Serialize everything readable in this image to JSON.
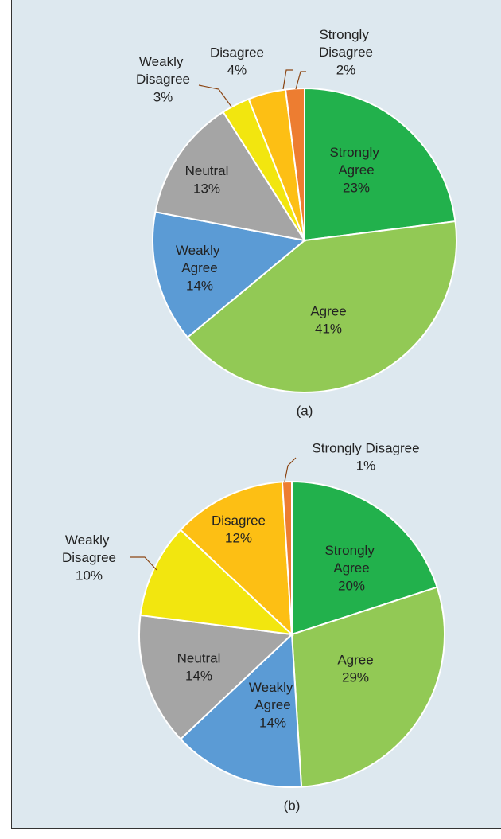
{
  "chart_data": [
    {
      "type": "pie",
      "title": "(a)",
      "categories": [
        "Strongly Agree",
        "Agree",
        "Weakly Agree",
        "Neutral",
        "Weakly Disagree",
        "Disagree",
        "Strongly Disagree"
      ],
      "values": [
        23,
        41,
        14,
        13,
        3,
        4,
        2
      ],
      "value_labels": [
        "23%",
        "41%",
        "14%",
        "13%",
        "3%",
        "4%",
        "2%"
      ],
      "colors": [
        "#22b14c",
        "#92c955",
        "#5b9bd5",
        "#a5a5a5",
        "#f2e60f",
        "#fdbf14",
        "#ed7d31"
      ]
    },
    {
      "type": "pie",
      "title": "(b)",
      "categories": [
        "Strongly Agree",
        "Agree",
        "Weakly Agree",
        "Neutral",
        "Weakly Disagree",
        "Disagree",
        "Strongly Disagree"
      ],
      "values": [
        20,
        29,
        14,
        14,
        10,
        12,
        1
      ],
      "value_labels": [
        "20%",
        "29%",
        "14%",
        "14%",
        "10%",
        "12%",
        "1%"
      ],
      "colors": [
        "#22b14c",
        "#92c955",
        "#5b9bd5",
        "#a5a5a5",
        "#f2e60f",
        "#fdbf14",
        "#ed7d31"
      ]
    }
  ]
}
